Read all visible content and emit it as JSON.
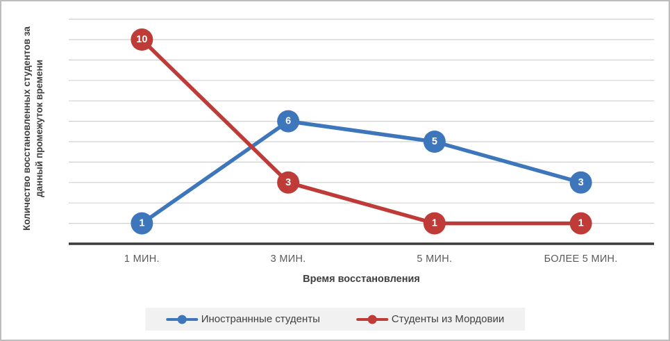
{
  "chart_data": {
    "type": "line",
    "categories": [
      "1 МИН.",
      "3 МИН.",
      "5 МИН.",
      "БОЛЕЕ 5 МИН."
    ],
    "series": [
      {
        "name": "Иностраннные студенты",
        "values": [
          1,
          6,
          5,
          3
        ],
        "color": "#3e76bc"
      },
      {
        "name": "Студенты из Мордовии",
        "values": [
          10,
          3,
          1,
          1
        ],
        "color": "#be3b38"
      }
    ],
    "title": "",
    "xlabel": "Время восстановления",
    "ylabel": "Количество восстановленных студентов за данный промежуток времени",
    "ylabel_lines": [
      "Количество восстановленных студентов за",
      "данный промежуток времени"
    ],
    "ylim": [
      0,
      11
    ],
    "y_gridline_step": 1,
    "grid": true,
    "y_tick_labels_visible": false,
    "data_labels": "values shown in white inside circular markers",
    "legend_position": "bottom",
    "style": {
      "grid_color": "#d0d0d0",
      "axis_line_color": "#3a3a3a",
      "tick_label_color": "#595959",
      "axis_title_color": "#3f3f3f",
      "legend_background": "#f1f1f1",
      "legend_text_color": "#404040",
      "marker_label_color": "#ffffff",
      "frame_border_color": "#bdbdbd",
      "background": "#ffffff"
    }
  }
}
